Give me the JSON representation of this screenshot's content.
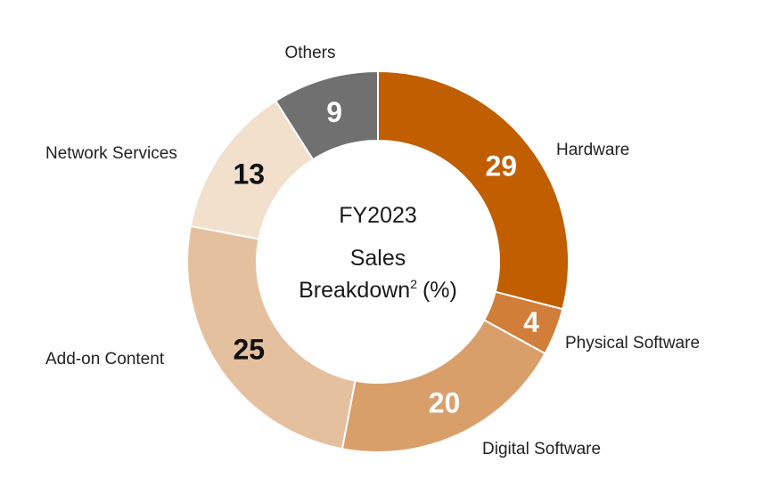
{
  "chart_data": {
    "type": "pie",
    "donut": true,
    "center_title": "FY2023",
    "center_subtitle_line1": "Sales",
    "center_subtitle_line2_main": "Breakdown",
    "center_subtitle_superscript": "2",
    "center_subtitle_unit": "(%)",
    "legend": "none",
    "slices": [
      {
        "label": "Hardware",
        "value": 29,
        "value_text": "29",
        "color": "#c05e00",
        "value_color": "#ffffff"
      },
      {
        "label": "Physical Software",
        "value": 4,
        "value_text": "4",
        "color": "#d17e3a",
        "value_color": "#ffffff"
      },
      {
        "label": "Digital Software",
        "value": 20,
        "value_text": "20",
        "color": "#d99f6b",
        "value_color": "#ffffff"
      },
      {
        "label": "Add-on Content",
        "value": 25,
        "value_text": "25",
        "color": "#e5c09e",
        "value_color": "#111111"
      },
      {
        "label": "Network Services",
        "value": 13,
        "value_text": "13",
        "color": "#f2dfcc",
        "value_color": "#111111"
      },
      {
        "label": "Others",
        "value": 9,
        "value_text": "9",
        "color": "#707070",
        "value_color": "#ffffff"
      }
    ]
  }
}
